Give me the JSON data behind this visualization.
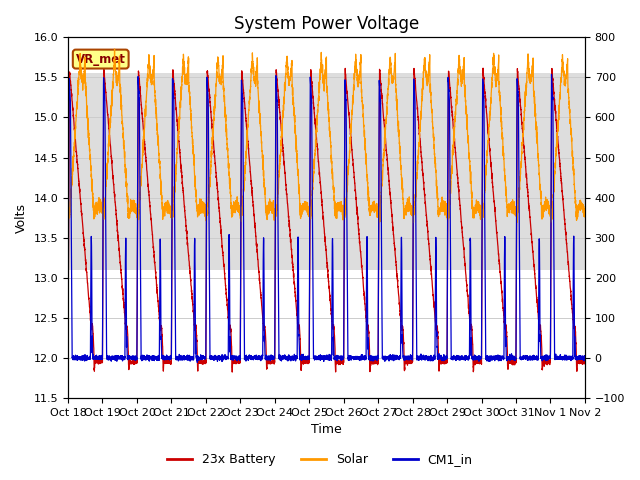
{
  "title": "System Power Voltage",
  "xlabel": "Time",
  "ylabel_left": "Volts",
  "ylim_left": [
    11.5,
    16.0
  ],
  "ylim_right": [
    -100,
    800
  ],
  "yticks_left": [
    11.5,
    12.0,
    12.5,
    13.0,
    13.5,
    14.0,
    14.5,
    15.0,
    15.5,
    16.0
  ],
  "yticks_right": [
    -100,
    0,
    100,
    200,
    300,
    400,
    500,
    600,
    700,
    800
  ],
  "xtick_labels": [
    "Oct 18",
    "Oct 19",
    "Oct 20",
    "Oct 21",
    "Oct 22",
    "Oct 23",
    "Oct 24",
    "Oct 25",
    "Oct 26",
    "Oct 27",
    "Oct 28",
    "Oct 29",
    "Oct 30",
    "Oct 31",
    "Nov 1",
    "Nov 2"
  ],
  "legend_labels": [
    "23x Battery",
    "Solar",
    "CM1_in"
  ],
  "legend_colors": [
    "#cc0000",
    "#ff9900",
    "#0000cc"
  ],
  "vr_met_box_color": "#ffff88",
  "vr_met_border_color": "#aa4400",
  "background_color": "#ffffff",
  "grid_color": "#cccccc",
  "shaded_band_color": "#dddddd",
  "shaded_band_ylim": [
    13.1,
    15.55
  ],
  "n_cycles": 15,
  "total_days": 15.5,
  "battery_color": "#cc0000",
  "solar_color": "#ff9900",
  "cm1_color": "#0000cc",
  "title_fontsize": 12,
  "axis_label_fontsize": 9,
  "tick_fontsize": 8
}
